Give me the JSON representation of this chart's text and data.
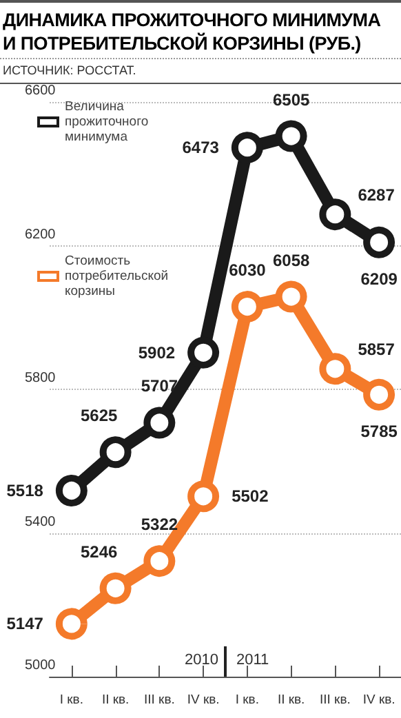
{
  "chart_data": {
    "type": "line",
    "title": "ДИНАМИКА ПРОЖИТОЧНОГО МИНИМУМА И ПОТРЕБИТЕЛЬСКОЙ КОРЗИНЫ (РУБ.)",
    "subtitle": "ИСТОЧНИК: РОССТАТ.",
    "categories": [
      "I кв.",
      "II кв.",
      "III кв.",
      "IV кв.",
      "I кв.",
      "II кв.",
      "III кв.",
      "IV кв."
    ],
    "series": [
      {
        "name": "Величина прожиточного минимума",
        "color": "#1a1a1a",
        "values": [
          5518,
          5625,
          5707,
          5902,
          6473,
          6505,
          6287,
          6209
        ]
      },
      {
        "name": "Стоимость потребительской корзины",
        "color": "#f47a2a",
        "values": [
          5147,
          5246,
          5322,
          5502,
          6030,
          6058,
          5857,
          5785
        ]
      }
    ],
    "ylim": [
      5000,
      6600
    ],
    "yticks": [
      5000,
      5400,
      5800,
      6200,
      6600
    ],
    "grid": "y",
    "legend": "top left",
    "marker": "circle",
    "line_style": "solid",
    "data_labels": true,
    "annotations": [
      "2010",
      "2011"
    ]
  }
}
